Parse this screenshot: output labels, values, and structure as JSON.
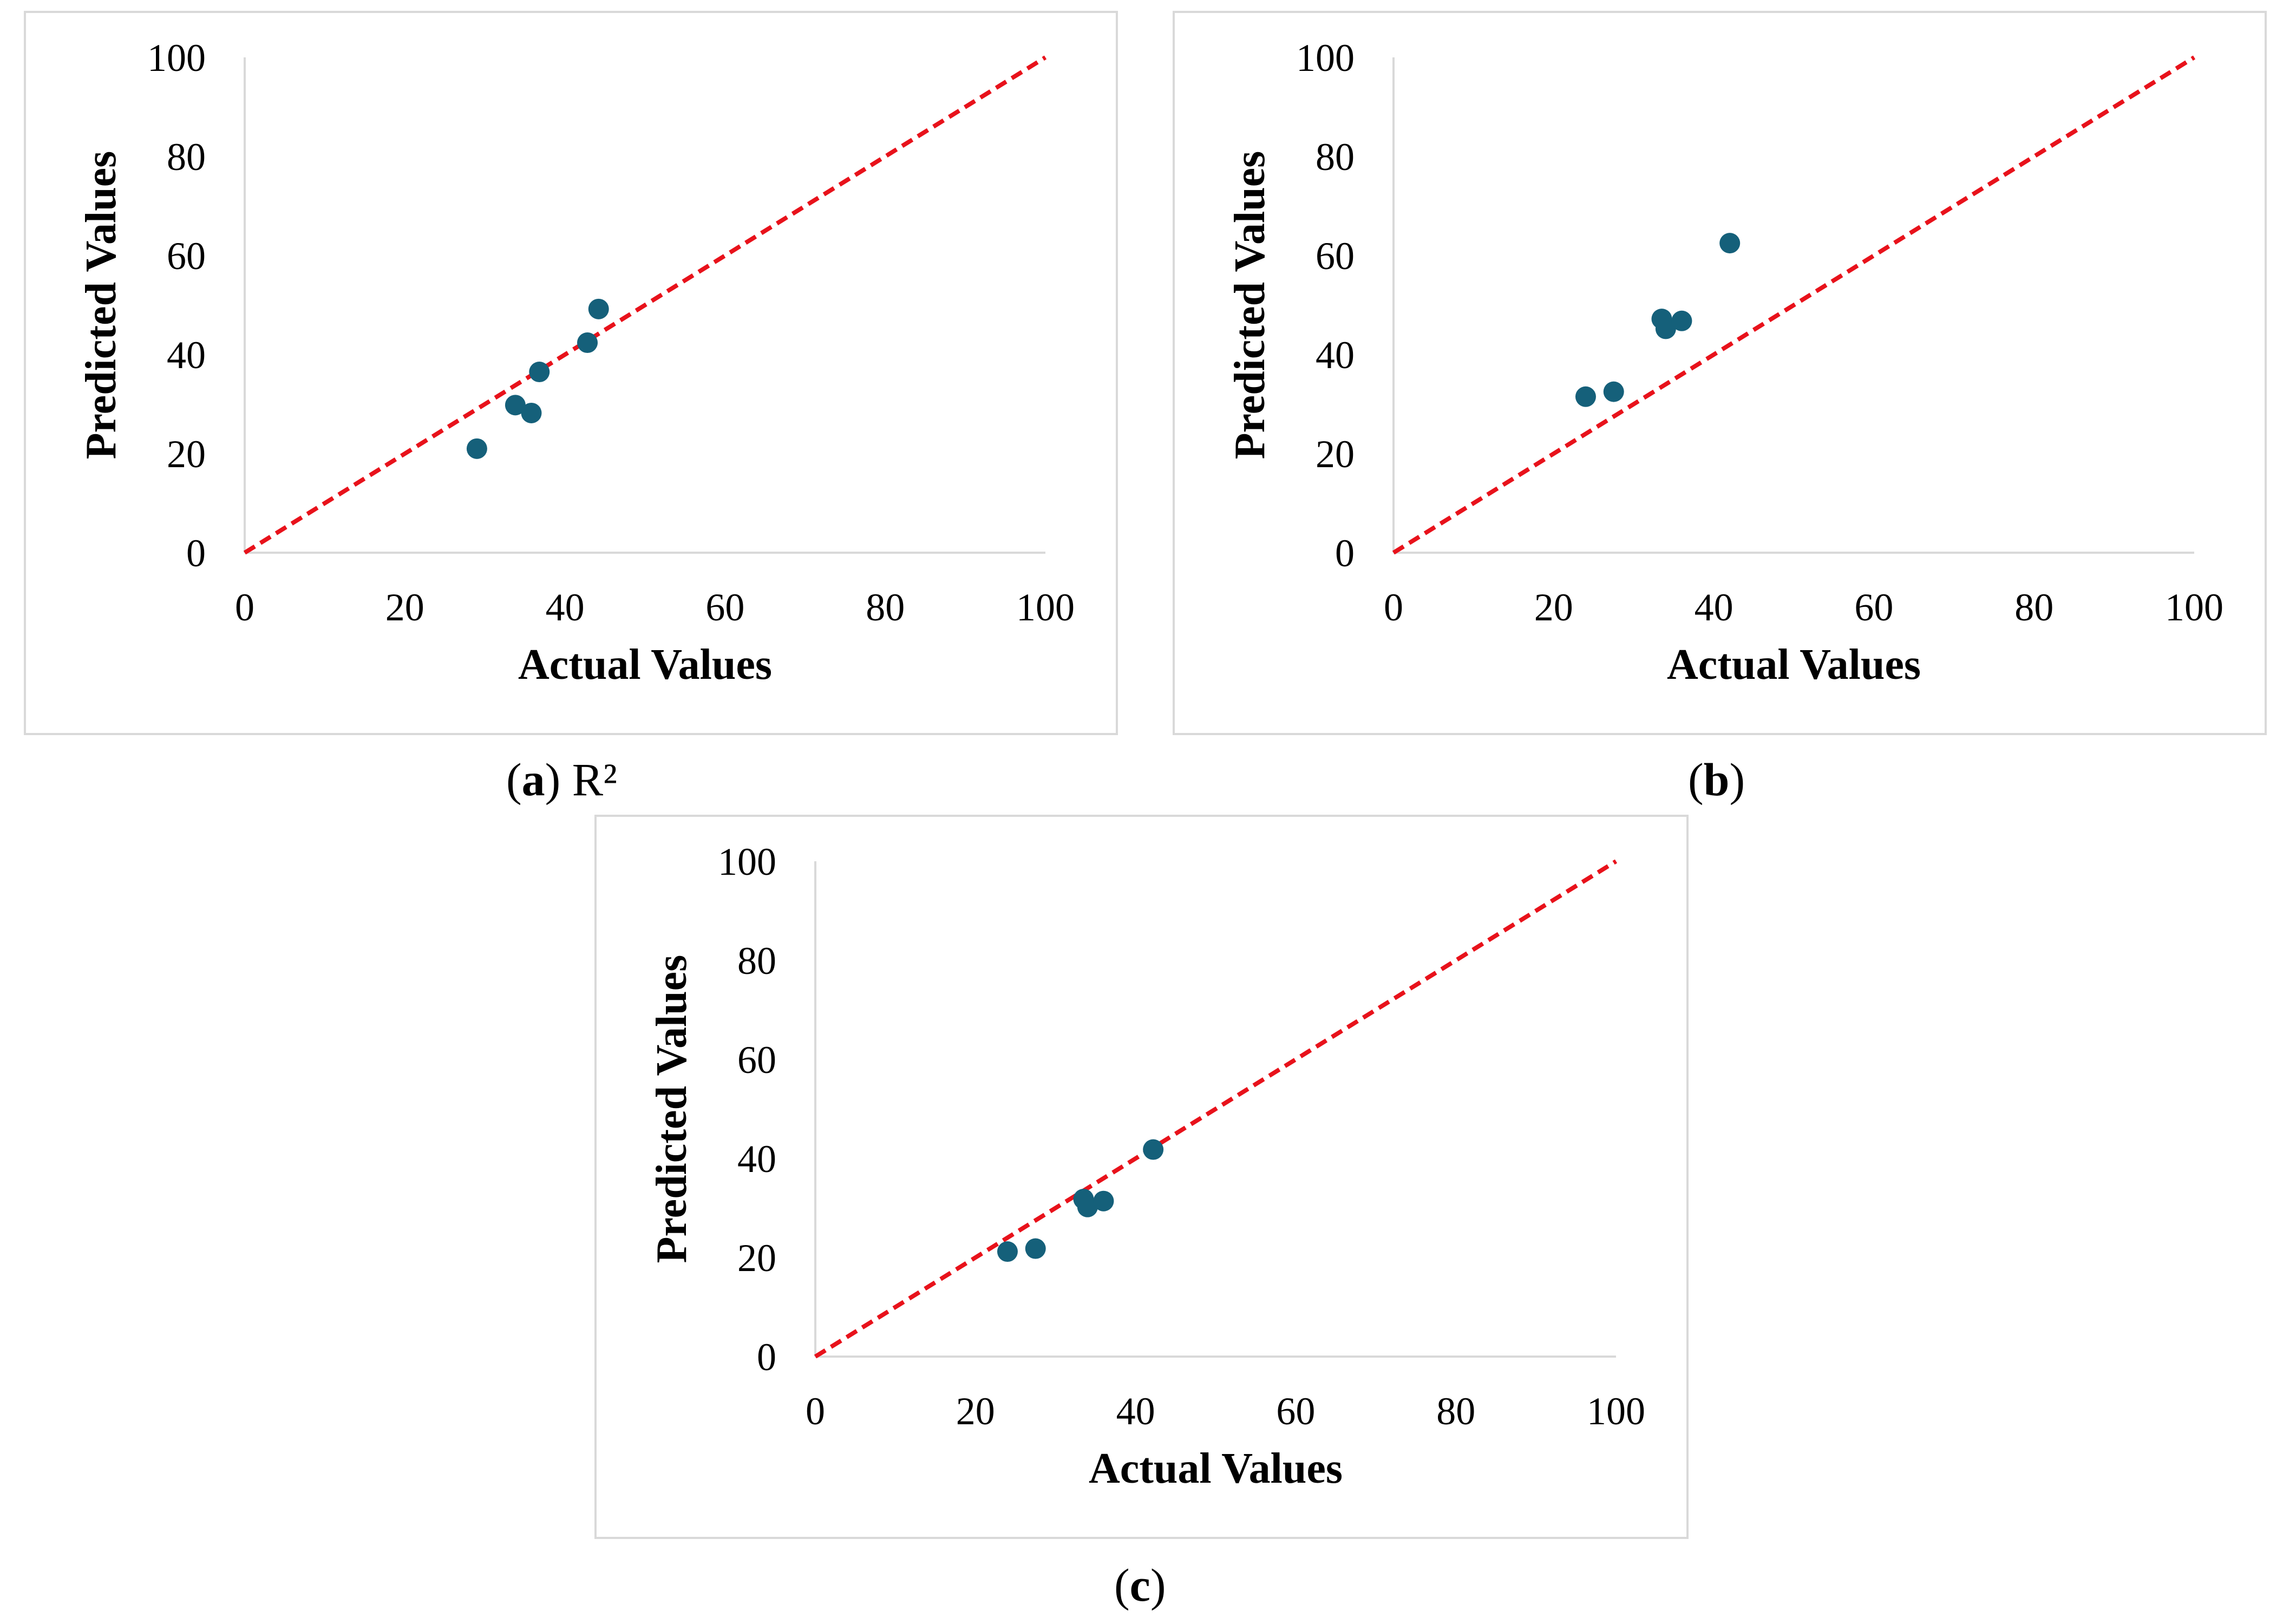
{
  "figure": {
    "colors": {
      "point": "#15607a",
      "reference_line": "#e8121b",
      "axis": "#d9d9d9",
      "border": "#d9d9d9"
    },
    "captions": [
      {
        "letter": "a",
        "suffix": "R²"
      },
      {
        "letter": "b",
        "suffix": ""
      },
      {
        "letter": "c",
        "suffix": ""
      }
    ]
  },
  "chart_data": [
    {
      "type": "scatter",
      "title": "",
      "xlabel": "Actual Values",
      "ylabel": "Predicted Values",
      "xlim": [
        0,
        100
      ],
      "ylim": [
        0,
        100
      ],
      "xticks": [
        0,
        20,
        40,
        60,
        80,
        100
      ],
      "yticks": [
        0,
        20,
        40,
        60,
        80,
        100
      ],
      "grid": false,
      "reference_line": {
        "from": [
          0,
          0
        ],
        "to": [
          100,
          100
        ],
        "style": "dashed"
      },
      "series": [
        {
          "name": "points",
          "x": [
            29,
            33.8,
            35.8,
            36.8,
            42.8,
            44.2
          ],
          "y": [
            21,
            29.8,
            28.2,
            36.5,
            42.4,
            49.2
          ]
        }
      ]
    },
    {
      "type": "scatter",
      "title": "",
      "xlabel": "Actual Values",
      "ylabel": "Predicted Values",
      "xlim": [
        0,
        100
      ],
      "ylim": [
        0,
        100
      ],
      "xticks": [
        0,
        20,
        40,
        60,
        80,
        100
      ],
      "yticks": [
        0,
        20,
        40,
        60,
        80,
        100
      ],
      "grid": false,
      "reference_line": {
        "from": [
          0,
          0
        ],
        "to": [
          100,
          100
        ],
        "style": "dashed"
      },
      "series": [
        {
          "name": "points",
          "x": [
            24,
            27.5,
            33.5,
            34,
            36,
            42
          ],
          "y": [
            31.5,
            32.5,
            47.2,
            45.2,
            46.8,
            62.5
          ]
        }
      ]
    },
    {
      "type": "scatter",
      "title": "",
      "xlabel": "Actual Values",
      "ylabel": "Predicted Values",
      "xlim": [
        0,
        100
      ],
      "ylim": [
        0,
        100
      ],
      "xticks": [
        0,
        20,
        40,
        60,
        80,
        100
      ],
      "yticks": [
        0,
        20,
        40,
        60,
        80,
        100
      ],
      "grid": false,
      "reference_line": {
        "from": [
          0,
          0
        ],
        "to": [
          100,
          100
        ],
        "style": "dashed"
      },
      "series": [
        {
          "name": "points",
          "x": [
            24,
            27.5,
            33.5,
            34,
            36,
            42.2
          ],
          "y": [
            21.2,
            21.8,
            31.8,
            30.2,
            31.4,
            41.8
          ]
        }
      ]
    }
  ]
}
